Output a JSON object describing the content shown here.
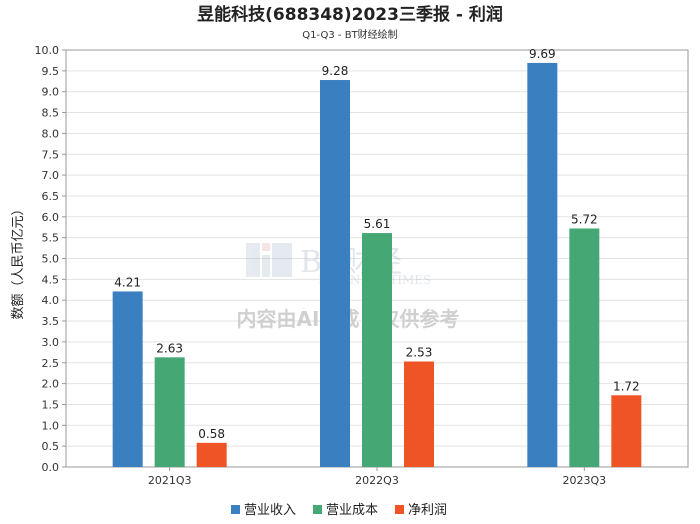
{
  "chart_data": {
    "type": "bar",
    "title": "昱能科技(688348)2023三季报 - 利润",
    "subtitle": "Q1-Q3 - BT财经绘制",
    "xlabel": "",
    "ylabel": "数额（人民币亿元）",
    "ylim": [
      0,
      10
    ],
    "y_ticks": [
      "0.0",
      "0.5",
      "1.0",
      "1.5",
      "2.0",
      "2.5",
      "3.0",
      "3.5",
      "4.0",
      "4.5",
      "5.0",
      "5.5",
      "6.0",
      "6.5",
      "7.0",
      "7.5",
      "8.0",
      "8.5",
      "9.0",
      "9.5",
      "10.0"
    ],
    "grid": true,
    "legend_position": "bottom-center",
    "categories": [
      "2021Q3",
      "2022Q3",
      "2023Q3"
    ],
    "series": [
      {
        "name": "营业收入",
        "color": "#3a7fbf",
        "values": [
          4.21,
          9.28,
          9.69
        ],
        "labels": [
          "4.21",
          "9.28",
          "9.69"
        ]
      },
      {
        "name": "营业成本",
        "color": "#45a874",
        "values": [
          2.63,
          5.61,
          5.72
        ],
        "labels": [
          "2.63",
          "5.61",
          "5.72"
        ]
      },
      {
        "name": "净利润",
        "color": "#ef5427",
        "values": [
          0.58,
          2.53,
          1.72
        ],
        "labels": [
          "0.58",
          "2.53",
          "1.72"
        ]
      }
    ]
  },
  "watermark": {
    "brand": "BT财经",
    "brand_en": "BUSINESS TIMES",
    "notice": "内容由AI生成，仅供参考"
  }
}
